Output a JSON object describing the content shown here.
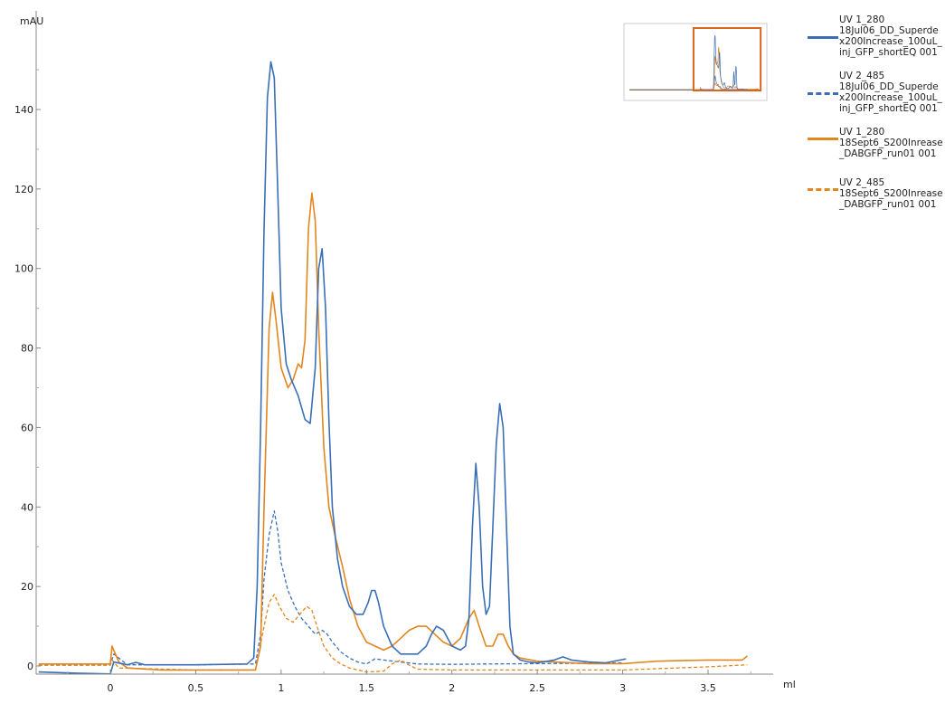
{
  "chart_data": {
    "type": "line",
    "xlabel": "ml",
    "ylabel": "mAU",
    "xlim": [
      -0.42,
      3.85
    ],
    "ylim": [
      -3,
      160
    ],
    "x_ticks": [
      "0",
      "0.5",
      "1",
      "1.5",
      "2",
      "2.5",
      "3",
      "3.5"
    ],
    "x_tick_values": [
      0,
      0.5,
      1,
      1.5,
      2,
      2.5,
      3,
      3.5
    ],
    "y_ticks": [
      "0",
      "20",
      "40",
      "60",
      "80",
      "100",
      "120",
      "140"
    ],
    "y_tick_values": [
      0,
      20,
      40,
      60,
      80,
      100,
      120,
      140
    ],
    "grid": false,
    "legend_position": "right",
    "colors": {
      "blue": "#3a6fb7",
      "orange": "#e2861e",
      "overview_box": "#d9661f"
    },
    "series": [
      {
        "name": "UV 1_280\n18Jul06_DD_Superdex200Increase_100uL_inj_GFP_shortEQ 001",
        "color": "#3a6fb7",
        "dash": false,
        "x": [
          -0.42,
          -0.2,
          0,
          0.02,
          0.1,
          0.15,
          0.2,
          0.5,
          0.8,
          0.84,
          0.86,
          0.88,
          0.9,
          0.92,
          0.94,
          0.96,
          0.98,
          1.0,
          1.03,
          1.06,
          1.1,
          1.14,
          1.17,
          1.2,
          1.22,
          1.24,
          1.26,
          1.28,
          1.3,
          1.33,
          1.36,
          1.4,
          1.44,
          1.48,
          1.51,
          1.53,
          1.55,
          1.57,
          1.6,
          1.65,
          1.7,
          1.75,
          1.8,
          1.85,
          1.88,
          1.91,
          1.95,
          2.0,
          2.05,
          2.08,
          2.1,
          2.12,
          2.14,
          2.16,
          2.18,
          2.2,
          2.22,
          2.24,
          2.26,
          2.28,
          2.3,
          2.32,
          2.34,
          2.36,
          2.4,
          2.45,
          2.5,
          2.6,
          2.65,
          2.7,
          2.8,
          2.9,
          3.02
        ],
        "y": [
          -1.5,
          -1.8,
          -2,
          1,
          0.3,
          0.9,
          0.3,
          0.3,
          0.5,
          2,
          20,
          60,
          110,
          143,
          152,
          148,
          120,
          90,
          76,
          72,
          68,
          62,
          61,
          75,
          100,
          105,
          90,
          62,
          40,
          27,
          20,
          15,
          13,
          13,
          16,
          19,
          19,
          16,
          10,
          5,
          3,
          3,
          3,
          5,
          8,
          10,
          9,
          5,
          4,
          5,
          12,
          35,
          51,
          40,
          20,
          13,
          15,
          35,
          56,
          66,
          60,
          35,
          10,
          3,
          1.5,
          1,
          0.8,
          1.5,
          2.3,
          1.5,
          1,
          0.8,
          1.8
        ]
      },
      {
        "name": "UV 2_485\n18Jul06_DD_Superdex200Increase_100uL_inj_GFP_shortEQ 001",
        "color": "#3a6fb7",
        "dash": true,
        "x": [
          -0.42,
          0,
          0.02,
          0.1,
          0.5,
          0.85,
          0.88,
          0.9,
          0.93,
          0.96,
          0.98,
          1.0,
          1.04,
          1.08,
          1.12,
          1.16,
          1.2,
          1.24,
          1.27,
          1.3,
          1.35,
          1.4,
          1.45,
          1.5,
          1.55,
          1.6,
          1.7,
          1.8,
          2.0,
          2.2,
          2.5,
          3.0
        ],
        "y": [
          0.2,
          0.2,
          3,
          0.3,
          0.3,
          0.5,
          8,
          22,
          33,
          39,
          34,
          26,
          19,
          15,
          12,
          10,
          8,
          9,
          8,
          6,
          3.5,
          2,
          1,
          0.5,
          1.8,
          1.5,
          1,
          0.5,
          0.4,
          0.5,
          0.6,
          0.8
        ]
      },
      {
        "name": "UV 1_280\n18Sept6_S200Inrease_DABGFP_run01 001",
        "color": "#e2861e",
        "dash": false,
        "x": [
          -0.42,
          -0.2,
          0,
          0.01,
          0.05,
          0.1,
          0.3,
          0.6,
          0.85,
          0.88,
          0.9,
          0.93,
          0.95,
          0.97,
          1.0,
          1.04,
          1.07,
          1.1,
          1.12,
          1.14,
          1.16,
          1.18,
          1.2,
          1.22,
          1.25,
          1.28,
          1.32,
          1.36,
          1.4,
          1.45,
          1.5,
          1.55,
          1.6,
          1.65,
          1.7,
          1.75,
          1.8,
          1.85,
          1.9,
          1.95,
          2.0,
          2.05,
          2.1,
          2.13,
          2.16,
          2.2,
          2.24,
          2.27,
          2.3,
          2.33,
          2.36,
          2.4,
          2.5,
          2.6,
          2.8,
          3.0,
          3.2,
          3.5,
          3.7,
          3.73
        ],
        "y": [
          0.5,
          0.5,
          0.5,
          5,
          1,
          -0.5,
          -1,
          -1,
          -1,
          5,
          40,
          85,
          94,
          87,
          75,
          70,
          72,
          76,
          75,
          82,
          110,
          119,
          112,
          85,
          55,
          40,
          32,
          25,
          17,
          10,
          6,
          5,
          4,
          5,
          7,
          9,
          10,
          10,
          8,
          6,
          5,
          7,
          12,
          14,
          10,
          5,
          5,
          8,
          8,
          5,
          3,
          2,
          1.2,
          1,
          0.6,
          0.6,
          1.2,
          1.5,
          1.5,
          2.5
        ]
      },
      {
        "name": "UV 2_485\n18Sept6_S200Inrease_DABGFP_run01 001",
        "color": "#e2861e",
        "dash": true,
        "x": [
          -0.42,
          0,
          0.01,
          0.05,
          0.5,
          0.85,
          0.9,
          0.93,
          0.96,
          0.99,
          1.03,
          1.07,
          1.11,
          1.15,
          1.18,
          1.21,
          1.25,
          1.3,
          1.35,
          1.4,
          1.5,
          1.6,
          1.65,
          1.7,
          1.75,
          1.8,
          2.0,
          2.5,
          3.0,
          3.5,
          3.73
        ],
        "y": [
          0.2,
          0.2,
          1.5,
          -0.5,
          -1,
          -1,
          10,
          16,
          18,
          15,
          12,
          11,
          13,
          15,
          14,
          10,
          5,
          2,
          0.5,
          -0.5,
          -1.5,
          -1.3,
          0.5,
          1.5,
          0.2,
          -0.8,
          -1,
          -1,
          -1,
          -0.2,
          0.3
        ]
      }
    ]
  },
  "legend": {
    "items": [
      {
        "label": "UV 1_280\n18Jul06_DD_Superdex200Increase_100uL_inj_GFP_shortEQ 001"
      },
      {
        "label": "UV 2_485\n18Jul06_DD_Superdex200Increase_100uL_inj_GFP_shortEQ 001"
      },
      {
        "label": "UV 1_280\n18Sept6_S200Inrease_DABGFP_run01 001"
      },
      {
        "label": "UV 2_485\n18Sept6_S200Inrease_DABGFP_run01 001"
      }
    ]
  }
}
